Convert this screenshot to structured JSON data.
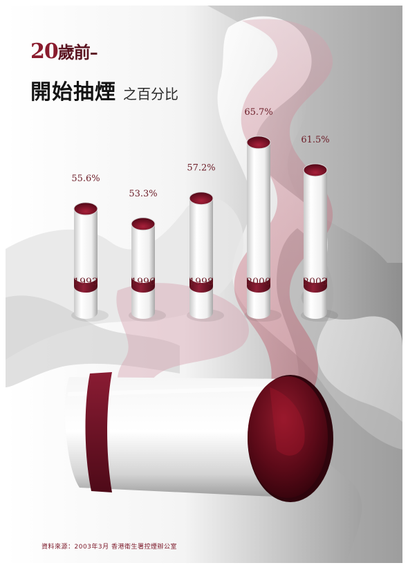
{
  "title": {
    "line1_num": "20",
    "line1_rest": "歲前–",
    "line2_main": "開始抽煙",
    "line2_sub": "之百分比"
  },
  "source": "資料來源：2003年3月 香港衛生署控煙辦公室",
  "colors": {
    "maroon": "#7a1526",
    "maroon_dark": "#3d0610",
    "background_grey": "#9a9a9a"
  },
  "chart_data": {
    "type": "bar",
    "categories": [
      "1993",
      "1996",
      "1998",
      "2000",
      "2003"
    ],
    "values": [
      55.6,
      53.3,
      57.2,
      65.7,
      61.5
    ],
    "value_labels": [
      "55.6%",
      "53.3%",
      "57.2%",
      "65.7%",
      "61.5%"
    ],
    "title": "20歲前–開始抽煙之百分比",
    "xlabel": "",
    "ylabel": "",
    "unit": "%"
  }
}
